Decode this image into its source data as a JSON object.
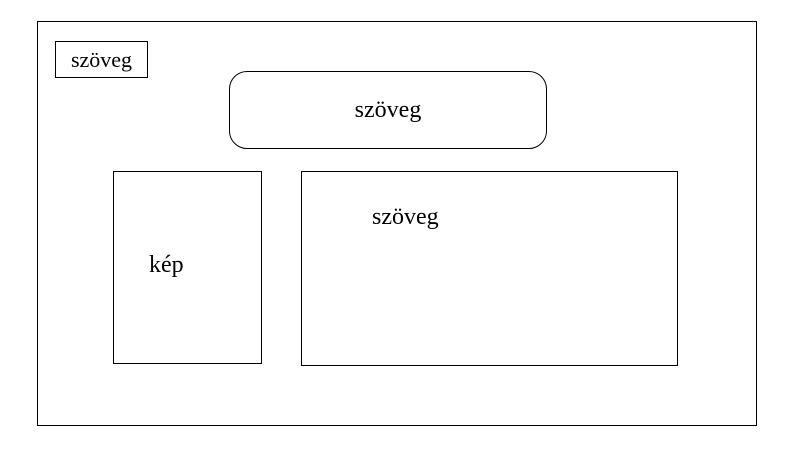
{
  "diagram": {
    "small_label": "szöveg",
    "heading": "szöveg",
    "image_placeholder": "kép",
    "content_text": "szöveg"
  }
}
